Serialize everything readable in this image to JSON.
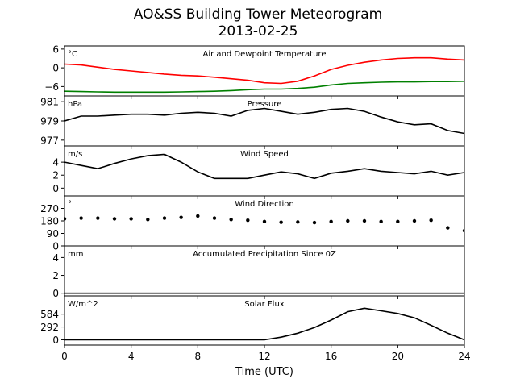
{
  "figure": {
    "title_line1": "AO&SS Building Tower Meteorogram",
    "title_line2": "2013-02-25",
    "xlabel": "Time (UTC)"
  },
  "chart_data": {
    "type": "line",
    "x_axis": {
      "label": "Time (UTC)",
      "range": [
        0,
        24
      ],
      "ticks": [
        0,
        4,
        8,
        12,
        16,
        20,
        24
      ]
    },
    "panels": [
      {
        "title": "Air and Dewpoint Temperature",
        "unit": "°C",
        "ylim": [
          -9,
          7
        ],
        "yticks": [
          6,
          0,
          -6
        ],
        "ytick_labels": [
          "6",
          "0",
          "−6"
        ],
        "series": [
          {
            "color": "#ff0000",
            "style": "line",
            "x": [
              0,
              1,
              2,
              3,
              4,
              5,
              6,
              7,
              8,
              9,
              10,
              11,
              12,
              13,
              14,
              15,
              16,
              17,
              18,
              19,
              20,
              21,
              22,
              23,
              24
            ],
            "y": [
              1.2,
              0.9,
              0.2,
              -0.5,
              -1.0,
              -1.5,
              -2.0,
              -2.4,
              -2.6,
              -3.0,
              -3.5,
              -4.0,
              -4.8,
              -5.0,
              -4.3,
              -2.6,
              -0.5,
              0.8,
              1.8,
              2.5,
              3.0,
              3.2,
              3.2,
              2.8,
              2.5
            ]
          },
          {
            "color": "#008000",
            "style": "line",
            "x": [
              0,
              1,
              2,
              3,
              4,
              5,
              6,
              7,
              8,
              9,
              10,
              11,
              12,
              13,
              14,
              15,
              16,
              17,
              18,
              19,
              20,
              21,
              22,
              23,
              24
            ],
            "y": [
              -7.5,
              -7.6,
              -7.7,
              -7.8,
              -7.8,
              -7.8,
              -7.8,
              -7.7,
              -7.6,
              -7.5,
              -7.3,
              -7.0,
              -6.8,
              -6.8,
              -6.6,
              -6.2,
              -5.5,
              -5.0,
              -4.8,
              -4.6,
              -4.5,
              -4.5,
              -4.4,
              -4.4,
              -4.3
            ]
          }
        ]
      },
      {
        "title": "Pressure",
        "unit": "hPa",
        "ylim": [
          976.4,
          981.6
        ],
        "yticks": [
          981,
          979,
          977
        ],
        "ytick_labels": [
          "981",
          "979",
          "977"
        ],
        "series": [
          {
            "color": "#000000",
            "style": "line",
            "x": [
              0,
              1,
              2,
              3,
              4,
              5,
              6,
              7,
              8,
              9,
              10,
              11,
              12,
              13,
              14,
              15,
              16,
              17,
              18,
              19,
              20,
              21,
              22,
              23,
              24
            ],
            "y": [
              979.0,
              979.5,
              979.5,
              979.6,
              979.7,
              979.7,
              979.6,
              979.8,
              979.9,
              979.8,
              979.5,
              980.1,
              980.3,
              980.0,
              979.7,
              979.9,
              980.2,
              980.3,
              980.0,
              979.4,
              978.9,
              978.6,
              978.7,
              978.0,
              977.7
            ]
          }
        ]
      },
      {
        "title": "Wind Speed",
        "unit": "m/s",
        "ylim": [
          -1.2,
          6.5
        ],
        "yticks": [
          4,
          2,
          0
        ],
        "ytick_labels": [
          "4",
          "2",
          "0"
        ],
        "series": [
          {
            "color": "#000000",
            "style": "line",
            "x": [
              0,
              1,
              2,
              3,
              4,
              5,
              6,
              7,
              8,
              9,
              10,
              11,
              12,
              13,
              14,
              15,
              16,
              17,
              18,
              19,
              20,
              21,
              22,
              23,
              24
            ],
            "y": [
              4.0,
              3.5,
              3.0,
              3.8,
              4.5,
              5.0,
              5.2,
              4.0,
              2.5,
              1.5,
              1.5,
              1.5,
              2.0,
              2.5,
              2.2,
              1.5,
              2.3,
              2.6,
              3.0,
              2.6,
              2.4,
              2.2,
              2.6,
              2.0,
              2.4
            ]
          }
        ]
      },
      {
        "title": "Wind Direction",
        "unit": "°",
        "ylim": [
          0,
          360
        ],
        "yticks": [
          270,
          180,
          90,
          0
        ],
        "ytick_labels": [
          "270",
          "180",
          "90",
          "0"
        ],
        "series": [
          {
            "color": "#000000",
            "style": "dots",
            "x": [
              0,
              1,
              2,
              3,
              4,
              5,
              6,
              7,
              8,
              9,
              10,
              11,
              12,
              13,
              14,
              15,
              16,
              17,
              18,
              19,
              20,
              21,
              22,
              23,
              24
            ],
            "y": [
              195,
              200,
              200,
              195,
              195,
              190,
              200,
              205,
              215,
              200,
              190,
              185,
              175,
              170,
              172,
              168,
              175,
              180,
              180,
              175,
              175,
              180,
              185,
              130,
              110
            ]
          }
        ]
      },
      {
        "title": "Accumulated Precipitation Since 0Z",
        "unit": "mm",
        "ylim": [
          -0.3,
          5.3
        ],
        "yticks": [
          4,
          2,
          0
        ],
        "ytick_labels": [
          "4",
          "2",
          "0"
        ],
        "series": [
          {
            "color": "#000000",
            "style": "line",
            "x": [
              0,
              24
            ],
            "y": [
              0,
              0
            ]
          }
        ]
      },
      {
        "title": "Solar Flux",
        "unit": "W/m^2",
        "ylim": [
          -120,
          1000
        ],
        "yticks": [
          584,
          292,
          0
        ],
        "ytick_labels": [
          "584",
          "292",
          "0"
        ],
        "series": [
          {
            "color": "#000000",
            "style": "line",
            "x": [
              0,
              12,
              13,
              14,
              15,
              16,
              17,
              18,
              19,
              20,
              21,
              22,
              23,
              24
            ],
            "y": [
              0,
              0,
              60,
              150,
              280,
              450,
              640,
              720,
              660,
              600,
              500,
              330,
              150,
              0
            ]
          }
        ]
      }
    ]
  }
}
